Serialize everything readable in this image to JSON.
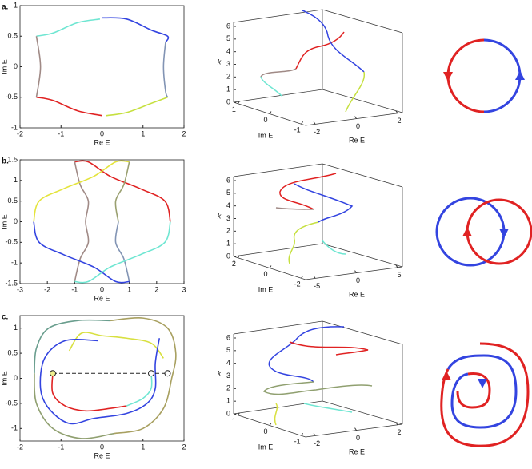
{
  "chart_data": [
    {
      "type": "line",
      "panel_label": "a.",
      "xlabel": "Re E",
      "ylabel": "Im E",
      "xlim": [
        -2,
        2
      ],
      "ylim": [
        -1,
        1
      ],
      "xticks": [
        -2,
        -1,
        0,
        1,
        2
      ],
      "yticks": [
        -1,
        -0.5,
        0,
        0.5,
        1
      ],
      "series": [
        {
          "color": "#6fe6d2",
          "x": [
            -1.6,
            -1.2,
            -0.6,
            -0.05
          ],
          "y": [
            0.5,
            0.55,
            0.72,
            0.78
          ]
        },
        {
          "color": "#3344e0",
          "x": [
            0,
            0.6,
            1.2,
            1.6,
            1.55
          ],
          "y": [
            0.8,
            0.78,
            0.6,
            0.5,
            0.4
          ]
        },
        {
          "color": "#8294b4",
          "x": [
            1.55,
            1.5,
            1.55,
            1.6
          ],
          "y": [
            0.4,
            0,
            -0.4,
            -0.5
          ]
        },
        {
          "color": "#c6e040",
          "x": [
            1.6,
            1.2,
            0.6,
            0.1
          ],
          "y": [
            -0.5,
            -0.6,
            -0.75,
            -0.8
          ]
        },
        {
          "color": "#e02222",
          "x": [
            0,
            -0.6,
            -1.2,
            -1.6
          ],
          "y": [
            -0.8,
            -0.72,
            -0.55,
            -0.5
          ]
        },
        {
          "color": "#a08a86",
          "x": [
            -1.6,
            -1.5,
            -1.6
          ],
          "y": [
            -0.5,
            0,
            0.5
          ]
        }
      ]
    },
    {
      "type": "line",
      "panel_label": "b.",
      "xlabel": "Re E",
      "ylabel": "Im E",
      "xlim": [
        -3,
        3
      ],
      "ylim": [
        -1.5,
        1.5
      ],
      "xticks": [
        -3,
        -2,
        -1,
        0,
        1,
        2,
        3
      ],
      "yticks": [
        -1.5,
        -1,
        -0.5,
        0,
        0.5,
        1,
        1.5
      ],
      "series": [
        {
          "color": "#e02222",
          "x": [
            2.5,
            2.3,
            1.4,
            0.3,
            -0.5,
            -1.0
          ],
          "y": [
            0,
            0.5,
            0.8,
            1.1,
            1.45,
            1.45
          ]
        },
        {
          "color": "#a08a86",
          "x": [
            -1.0,
            -0.8,
            -0.5,
            -0.6,
            -0.5,
            -0.8,
            -1.0
          ],
          "y": [
            1.45,
            0.9,
            0.5,
            0,
            -0.5,
            -0.9,
            -1.45
          ]
        },
        {
          "color": "#e4e43c",
          "x": [
            -2.5,
            -2.3,
            -1.4,
            -0.3,
            0.5,
            1.0
          ],
          "y": [
            0,
            0.5,
            0.8,
            1.1,
            1.45,
            1.45
          ]
        },
        {
          "color": "#9aa070",
          "x": [
            1.0,
            0.8,
            0.5,
            0.6
          ],
          "y": [
            1.45,
            0.9,
            0.5,
            0
          ]
        },
        {
          "color": "#8294b4",
          "x": [
            0.6,
            0.5,
            0.8,
            1.0
          ],
          "y": [
            0,
            -0.5,
            -0.9,
            -1.45
          ]
        },
        {
          "color": "#3344e0",
          "x": [
            -2.5,
            -2.3,
            -1.4,
            -0.3,
            0.5,
            1.0
          ],
          "y": [
            0,
            -0.5,
            -0.8,
            -1.1,
            -1.45,
            -1.45
          ]
        },
        {
          "color": "#6fe6d2",
          "x": [
            2.5,
            2.3,
            1.4,
            0.3,
            -0.5,
            -1.0
          ],
          "y": [
            0,
            -0.5,
            -0.8,
            -1.1,
            -1.45,
            -1.45
          ]
        }
      ]
    },
    {
      "type": "line",
      "panel_label": "c.",
      "xlabel": "Re E",
      "ylabel": "Im E",
      "xlim": [
        -2,
        2
      ],
      "ylim": [
        -1.25,
        1.25
      ],
      "xticks": [
        -2,
        -1,
        0,
        1,
        2
      ],
      "yticks": [
        -1,
        -0.5,
        0,
        0.5,
        1
      ],
      "series": [
        {
          "color": "#6a9e8e",
          "x": [
            -1.65,
            -1.6,
            -1.3,
            -0.6,
            0.2
          ],
          "y": [
            0.1,
            0.6,
            1.0,
            1.15,
            1.15
          ]
        },
        {
          "color": "#a8a060",
          "x": [
            0.2,
            1.0,
            1.6,
            1.8,
            1.7,
            1.5,
            1.0,
            0.3
          ],
          "y": [
            1.15,
            1.2,
            1.0,
            0.5,
            0,
            -0.6,
            -1.0,
            -1.1
          ]
        },
        {
          "color": "#90a070",
          "x": [
            0.3,
            -0.5,
            -1.2,
            -1.6,
            -1.65
          ],
          "y": [
            -1.1,
            -1.2,
            -1.0,
            -0.5,
            0.1
          ]
        },
        {
          "color": "#d8e040",
          "x": [
            -0.8,
            -0.5,
            0,
            0.6,
            1.2,
            1.5
          ],
          "y": [
            0.55,
            0.9,
            0.85,
            0.8,
            0.7,
            0.4
          ]
        },
        {
          "color": "#3344e0",
          "x": [
            -0.1,
            -0.9,
            -1.4,
            -1.5,
            -1.3,
            -0.8,
            -0.2,
            0.6,
            1.1,
            1.3,
            1.3,
            1.4
          ],
          "y": [
            0.75,
            0.75,
            0.4,
            -0.2,
            -0.6,
            -0.9,
            -0.8,
            -0.7,
            -0.5,
            -0.2,
            0.3,
            0.8
          ]
        },
        {
          "color": "#e02222",
          "x": [
            -1.2,
            -1.2,
            -0.9,
            -0.4,
            0.2,
            0.6
          ],
          "y": [
            0.1,
            -0.3,
            -0.55,
            -0.65,
            -0.6,
            -0.55
          ]
        },
        {
          "color": "#6fe6d2",
          "x": [
            0.6,
            1.0,
            1.2,
            1.2
          ],
          "y": [
            -0.55,
            -0.4,
            -0.2,
            0.1
          ]
        }
      ],
      "markers": {
        "x": [
          -1.2,
          1.2,
          1.6
        ],
        "y": [
          0.1,
          0.1,
          0.1
        ]
      }
    }
  ],
  "plots3d": [
    {
      "zlabel": "k",
      "xlabel": "Re E",
      "ylabel": "Im E",
      "zticks": [
        0,
        1,
        2,
        3,
        4,
        5,
        6
      ],
      "yticks": [
        1,
        0,
        -1
      ],
      "xticks": [
        -2,
        0,
        2
      ]
    },
    {
      "zlabel": "k",
      "xlabel": "Re E",
      "ylabel": "Im E",
      "zticks": [
        0,
        1,
        2,
        3,
        4,
        5,
        6
      ],
      "yticks": [
        2,
        0,
        -2
      ],
      "xticks": [
        -5,
        0,
        5
      ]
    },
    {
      "zlabel": "k",
      "xlabel": "Re E",
      "ylabel": "Im E",
      "zticks": [
        0,
        1,
        2,
        3,
        4,
        5,
        6
      ],
      "yticks": [
        1,
        0,
        -1
      ],
      "xticks": [
        -2,
        0,
        2
      ]
    }
  ]
}
